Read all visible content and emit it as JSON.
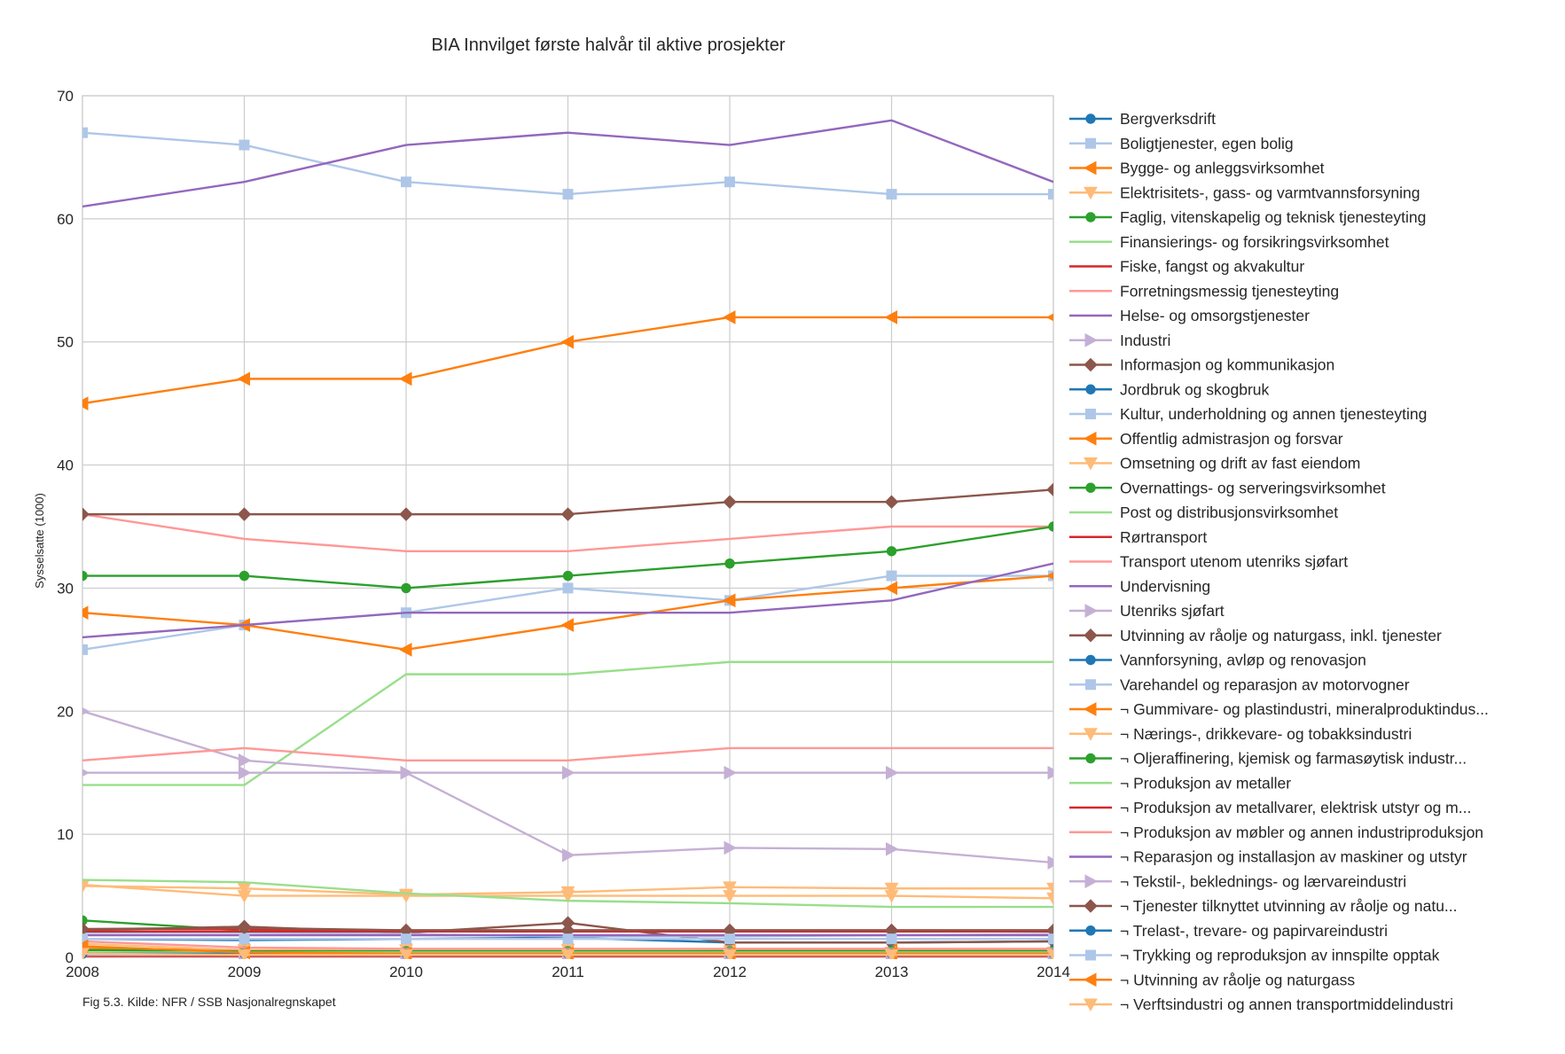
{
  "chart_data": {
    "type": "line",
    "title": "BIA Innvilget første halvår til aktive prosjekter",
    "ylabel": "Sysselsatte (1000)",
    "xlabel": "",
    "source": "Fig 5.3. Kilde: NFR / SSB Nasjonalregnskapet",
    "x": [
      2008,
      2009,
      2010,
      2011,
      2012,
      2013,
      2014
    ],
    "x_tick_labels": [
      "2008",
      "2009",
      "2010",
      "2011",
      "2012",
      "2013",
      "2014"
    ],
    "ylim": [
      0,
      70
    ],
    "y_ticks": [
      0,
      10,
      20,
      30,
      40,
      50,
      60,
      70
    ],
    "y_tick_labels": [
      "0",
      "10",
      "20",
      "30",
      "40",
      "50",
      "60",
      "70"
    ],
    "grid": true,
    "legend_position": "right",
    "series": [
      {
        "name": "Bergverksdrift",
        "color": "#1f77b4",
        "marker": "circle",
        "values": [
          0.3,
          0.3,
          0.3,
          0.3,
          0.3,
          0.3,
          0.3
        ]
      },
      {
        "name": "Boligtjenester, egen bolig",
        "color": "#aec7e8",
        "marker": "square",
        "values": [
          67,
          66,
          63,
          62,
          63,
          62,
          62
        ]
      },
      {
        "name": "Bygge- og anleggsvirksomhet",
        "color": "#ff7f0e",
        "marker": "triangle-left",
        "values": [
          45,
          47,
          47,
          50,
          52,
          52,
          52
        ]
      },
      {
        "name": "Elektrisitets-, gass- og varmtvannsforsyning",
        "color": "#ffbb78",
        "marker": "triangle-down",
        "values": [
          5.9,
          5,
          5,
          5,
          5,
          5,
          4.8
        ]
      },
      {
        "name": "Faglig, vitenskapelig og teknisk tjenesteyting",
        "color": "#2ca02c",
        "marker": "circle",
        "values": [
          3,
          2.2,
          2.1,
          2.1,
          2.1,
          2.1,
          2.1
        ]
      },
      {
        "name": "Finansierings- og forsikringsvirksomhet",
        "color": "#98df8a",
        "marker": "none",
        "values": [
          14,
          14,
          23,
          23,
          24,
          24,
          24
        ]
      },
      {
        "name": "Fiske, fangst og akvakultur",
        "color": "#d62728",
        "marker": "none",
        "values": [
          2.3,
          2.3,
          2.2,
          2.2,
          2.2,
          2.2,
          2.2
        ]
      },
      {
        "name": "Forretningsmessig tjenesteyting",
        "color": "#ff9896",
        "marker": "none",
        "values": [
          36,
          34,
          33,
          33,
          34,
          35,
          35
        ]
      },
      {
        "name": "Helse- og omsorgstjenester",
        "color": "#9467bd",
        "marker": "none",
        "values": [
          61,
          63,
          66,
          67,
          66,
          68,
          63
        ]
      },
      {
        "name": "Industri",
        "color": "#c5b0d5",
        "marker": "triangle-right",
        "values": [
          20,
          16,
          15,
          8.3,
          8.9,
          8.8,
          7.7
        ]
      },
      {
        "name": "Informasjon og kommunikasjon",
        "color": "#8c564b",
        "marker": "diamond",
        "values": [
          36,
          36,
          36,
          36,
          37,
          37,
          38
        ]
      },
      {
        "name": "Jordbruk og skogbruk",
        "color": "#1f77b4",
        "marker": "circle",
        "values": [
          1.5,
          1.4,
          1.5,
          1.6,
          1.2,
          1.2,
          1.3
        ]
      },
      {
        "name": "Kultur, underholdning og annen tjenesteyting",
        "color": "#aec7e8",
        "marker": "square",
        "values": [
          25,
          27,
          28,
          30,
          29,
          31,
          31
        ]
      },
      {
        "name": "Offentlig admistrasjon og forsvar",
        "color": "#ff7f0e",
        "marker": "triangle-left",
        "values": [
          28,
          27,
          25,
          27,
          29,
          30,
          31
        ]
      },
      {
        "name": "Omsetning og drift av fast eiendom",
        "color": "#ffbb78",
        "marker": "triangle-down",
        "values": [
          5.8,
          5.6,
          5.1,
          5.3,
          5.7,
          5.6,
          5.6
        ]
      },
      {
        "name": "Overnattings- og serveringsvirksomhet",
        "color": "#2ca02c",
        "marker": "circle",
        "values": [
          31,
          31,
          30,
          31,
          32,
          33,
          35
        ]
      },
      {
        "name": "Post og distribusjonsvirksomhet",
        "color": "#98df8a",
        "marker": "none",
        "values": [
          6.3,
          6.1,
          5.2,
          4.6,
          4.4,
          4.1,
          4.1
        ]
      },
      {
        "name": "Rørtransport",
        "color": "#d62728",
        "marker": "none",
        "values": [
          0.1,
          0.1,
          0.1,
          0.1,
          0.1,
          0.1,
          0.1
        ]
      },
      {
        "name": "Transport utenom utenriks sjøfart",
        "color": "#ff9896",
        "marker": "none",
        "values": [
          16,
          17,
          16,
          16,
          17,
          17,
          17
        ]
      },
      {
        "name": "Undervisning",
        "color": "#9467bd",
        "marker": "none",
        "values": [
          26,
          27,
          28,
          28,
          28,
          29,
          32
        ]
      },
      {
        "name": "Utenriks sjøfart",
        "color": "#c5b0d5",
        "marker": "triangle-right",
        "values": [
          15,
          15,
          15,
          15,
          15,
          15,
          15
        ]
      },
      {
        "name": "Utvinning av råolje og naturgass, inkl. tjenester",
        "color": "#8c564b",
        "marker": "diamond",
        "values": [
          2.2,
          2.5,
          2.0,
          2.8,
          1.2,
          1.2,
          1.3
        ]
      },
      {
        "name": "Vannforsyning, avløp og renovasjon",
        "color": "#1f77b4",
        "marker": "circle",
        "values": [
          0.6,
          0.6,
          0.6,
          0.6,
          0.6,
          0.6,
          0.6
        ]
      },
      {
        "name": "Varehandel og reparasjon av motorvogner",
        "color": "#aec7e8",
        "marker": "square",
        "values": [
          2,
          2,
          1.9,
          1.7,
          1.7,
          1.8,
          1.9
        ]
      },
      {
        "name": "¬ Gummivare- og plastindustri, mineralproduktindus...",
        "color": "#ff7f0e",
        "marker": "triangle-left",
        "values": [
          0.7,
          0.6,
          0.6,
          0.6,
          0.6,
          0.6,
          0.6
        ]
      },
      {
        "name": "¬ Nærings-, drikkevare- og tobakksindustri",
        "color": "#ffbb78",
        "marker": "triangle-down",
        "values": [
          1.1,
          0.6,
          0.6,
          0.6,
          0.5,
          0.4,
          0.4
        ]
      },
      {
        "name": "¬ Oljeraffinering, kjemisk og farmasøytisk industr...",
        "color": "#2ca02c",
        "marker": "circle",
        "values": [
          0.6,
          0.5,
          0.5,
          0.5,
          0.5,
          0.5,
          0.5
        ]
      },
      {
        "name": "¬ Produksjon av metaller",
        "color": "#98df8a",
        "marker": "none",
        "values": [
          0.4,
          0.4,
          0.4,
          0.4,
          0.4,
          0.4,
          0.4
        ]
      },
      {
        "name": "¬ Produksjon av metallvarer, elektrisk utstyr og m...",
        "color": "#d62728",
        "marker": "none",
        "values": [
          2.1,
          2.1,
          2.1,
          2.1,
          2.1,
          2.1,
          2.1
        ]
      },
      {
        "name": "¬ Produksjon av møbler og annen industriproduksjon",
        "color": "#ff9896",
        "marker": "none",
        "values": [
          1.3,
          0.8,
          0.7,
          0.7,
          0.7,
          0.7,
          0.7
        ]
      },
      {
        "name": "¬ Reparasjon og installasjon av maskiner og utstyr",
        "color": "#9467bd",
        "marker": "none",
        "values": [
          1.8,
          1.8,
          1.8,
          1.8,
          1.8,
          1.8,
          1.8
        ]
      },
      {
        "name": "¬ Tekstil-, beklednings- og lærvareindustri",
        "color": "#c5b0d5",
        "marker": "triangle-right",
        "values": [
          0.2,
          0.2,
          0.2,
          0.2,
          0.2,
          0.2,
          0.2
        ]
      },
      {
        "name": "¬ Tjenester tilknyttet utvinning av råolje og natu...",
        "color": "#8c564b",
        "marker": "diamond",
        "values": [
          2.3,
          2.4,
          2.2,
          2.2,
          2.2,
          2.2,
          2.2
        ]
      },
      {
        "name": "¬ Trelast-, trevare- og papirvareindustri",
        "color": "#1f77b4",
        "marker": "circle",
        "values": [
          0.3,
          0.3,
          0.3,
          0.3,
          0.3,
          0.3,
          0.3
        ]
      },
      {
        "name": "¬ Trykking og reproduksjon av innspilte opptak",
        "color": "#aec7e8",
        "marker": "square",
        "values": [
          1.5,
          1.5,
          1.5,
          1.5,
          1.5,
          1.5,
          1.5
        ]
      },
      {
        "name": "¬ Utvinning av råolje og naturgass",
        "color": "#ff7f0e",
        "marker": "triangle-left",
        "values": [
          0.9,
          0.4,
          0.3,
          0.3,
          0.3,
          0.3,
          0.3
        ]
      },
      {
        "name": "¬ Verftsindustri og annen transportmiddelindustri",
        "color": "#ffbb78",
        "marker": "triangle-down",
        "values": [
          0.3,
          0.2,
          0.2,
          0.2,
          0.2,
          0.2,
          0.2
        ]
      }
    ]
  }
}
